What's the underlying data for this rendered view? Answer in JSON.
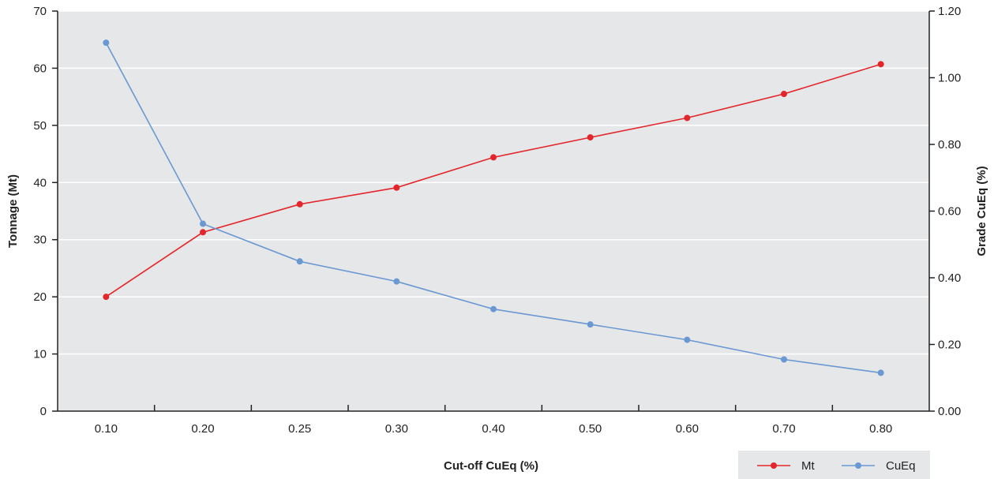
{
  "chart_data": {
    "type": "line",
    "categories": [
      "0.10",
      "0.20",
      "0.25",
      "0.30",
      "0.40",
      "0.50",
      "0.60",
      "0.70",
      "0.80"
    ],
    "series": [
      {
        "name": "Mt",
        "axis": "left",
        "color": "#e3262b",
        "values": [
          20.0,
          31.3,
          36.2,
          39.1,
          44.4,
          47.9,
          51.3,
          55.5,
          60.7
        ]
      },
      {
        "name": "CuEq",
        "axis": "right",
        "color": "#6a98d2",
        "values": [
          1.105,
          0.562,
          0.449,
          0.389,
          0.306,
          0.26,
          0.214,
          0.155,
          0.115
        ]
      }
    ],
    "xlabel": "Cut-off CuEq (%)",
    "ylabel_left": "Tonnage (Mt)",
    "ylabel_right": "Grade CuEq (%)",
    "ylim_left": [
      0,
      70
    ],
    "yticks_left": [
      "0",
      "10",
      "20",
      "30",
      "40",
      "50",
      "60",
      "70"
    ],
    "ylim_right": [
      0,
      1.2
    ],
    "yticks_right": [
      "0.00",
      "0.20",
      "0.40",
      "0.60",
      "0.80",
      "1.00",
      "1.20"
    ],
    "grid": true,
    "legend_position": "bottom-right",
    "plot_background": "#e6e7e8",
    "grid_color": "#ffffff"
  }
}
